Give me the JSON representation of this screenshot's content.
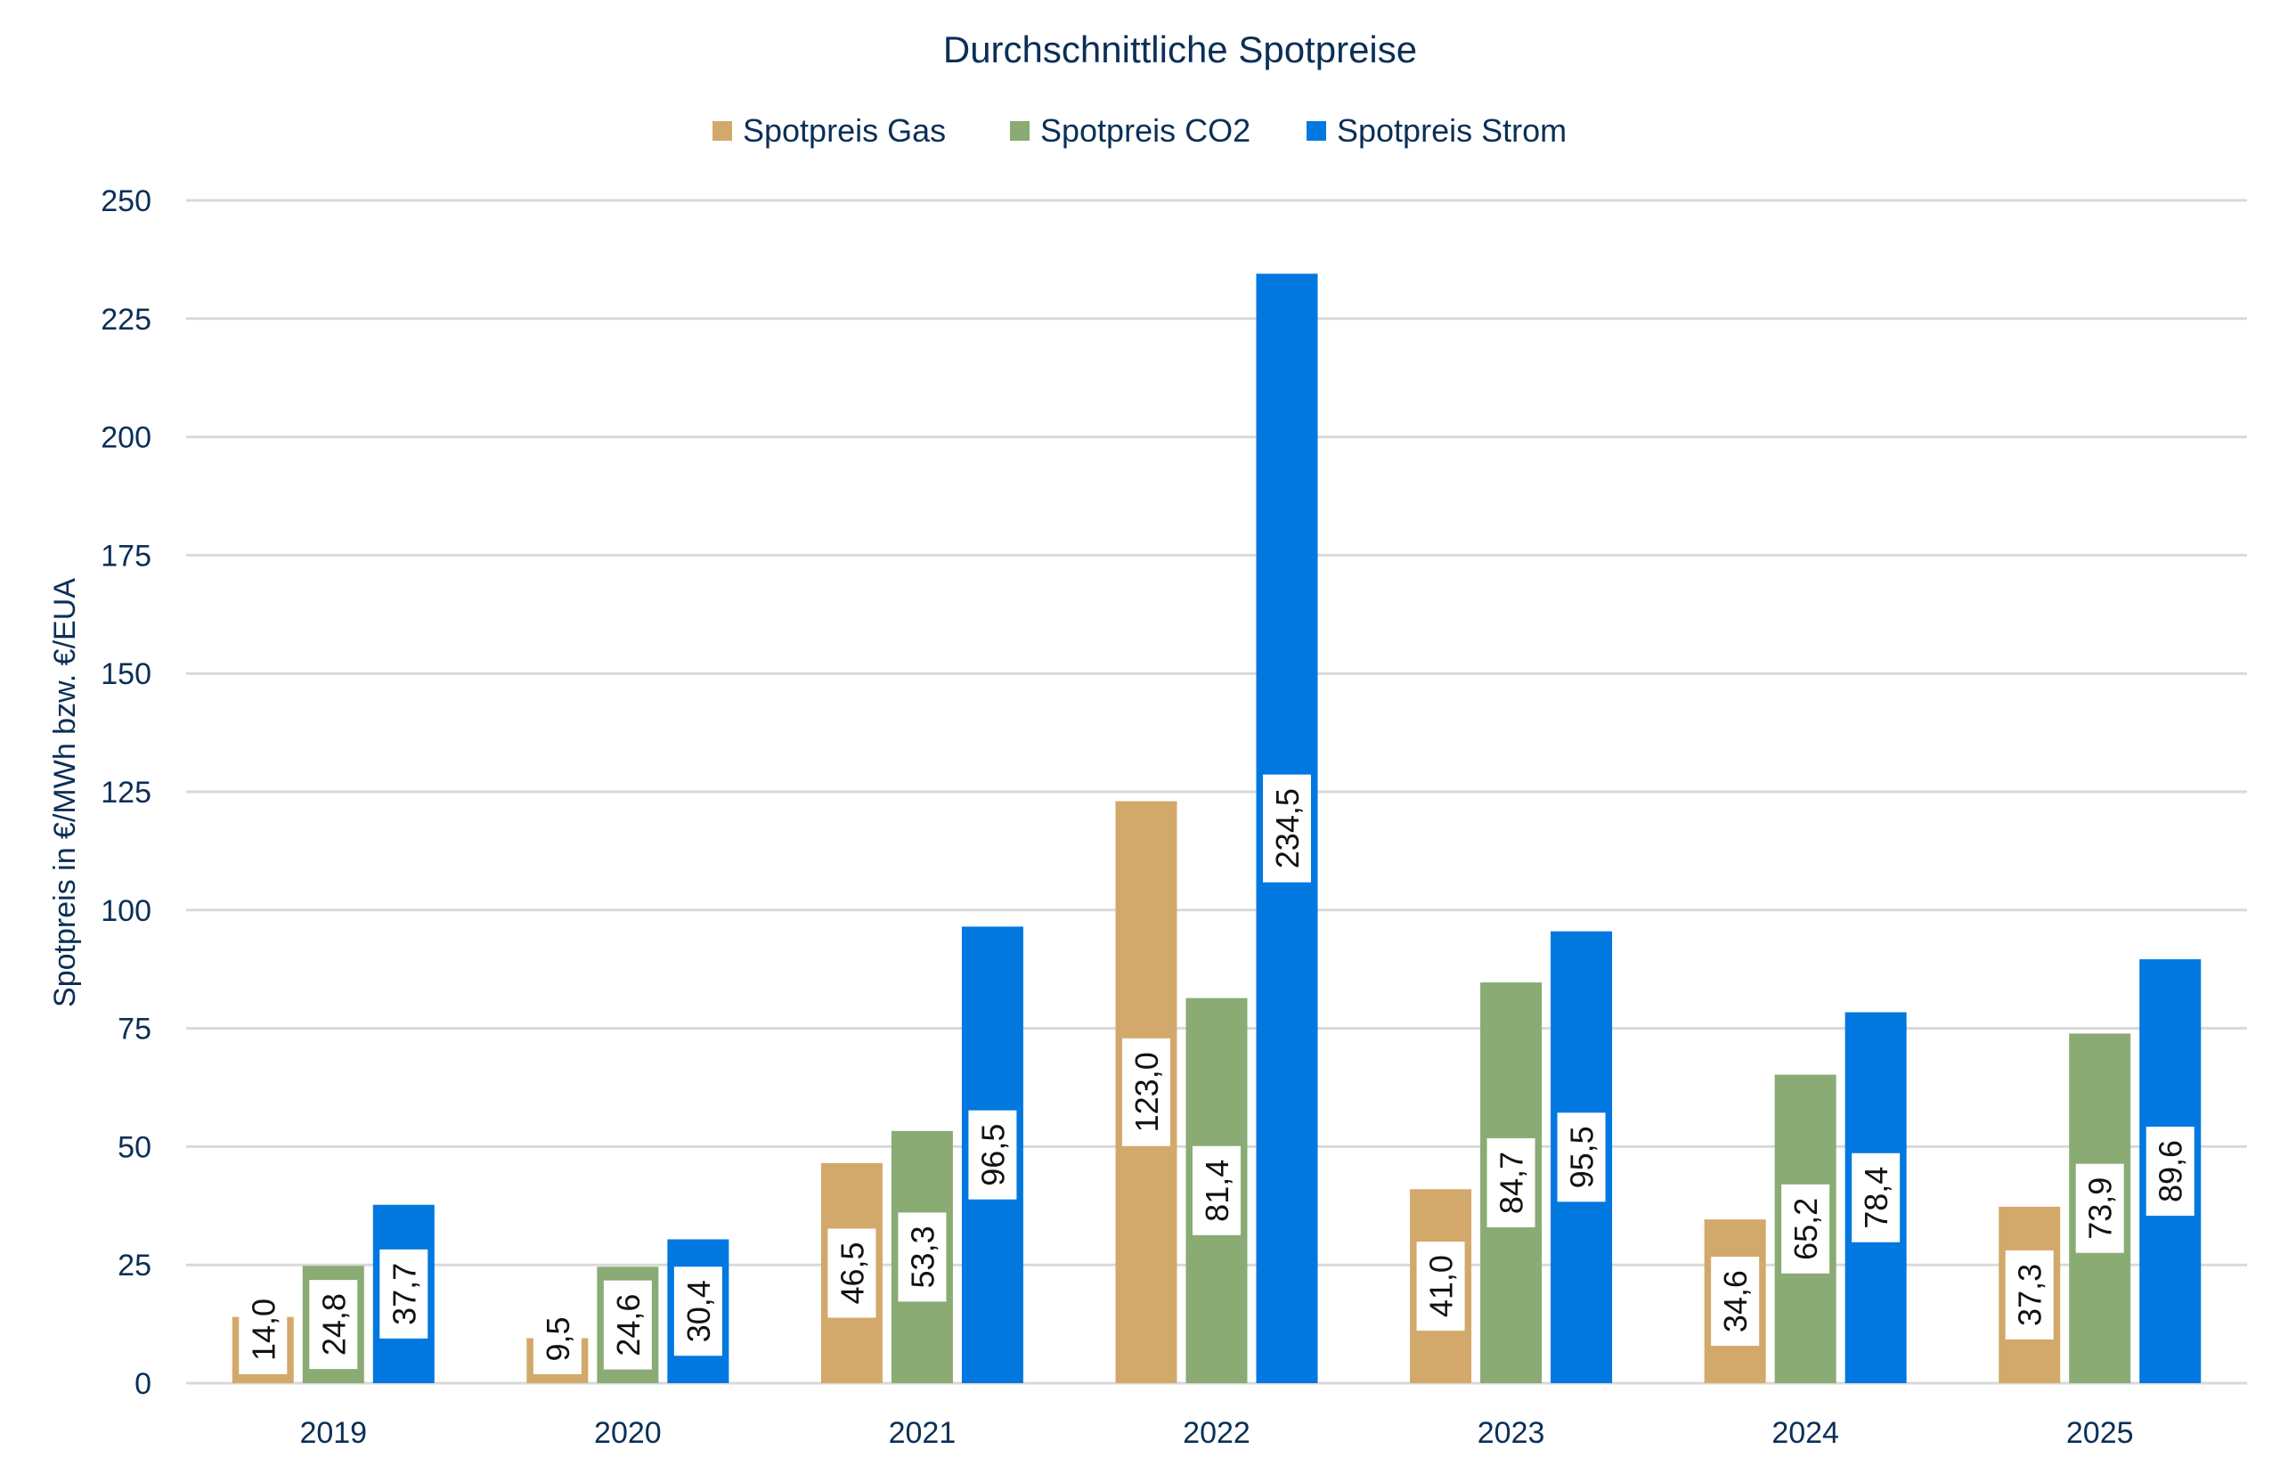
{
  "chart_data": {
    "type": "bar",
    "title": "Durchschnittliche Spotpreise",
    "xlabel": "",
    "ylabel": "Spotpreis in €/MWh bzw. €/EUA",
    "ylim": [
      0,
      250
    ],
    "yticks": [
      0,
      25,
      50,
      75,
      100,
      125,
      150,
      175,
      200,
      225,
      250
    ],
    "grid": true,
    "legend_position": "top",
    "categories": [
      "2019",
      "2020",
      "2021",
      "2022",
      "2023",
      "2024",
      "2025"
    ],
    "series": [
      {
        "name": "Spotpreis Gas",
        "color": "#d2a96a",
        "values": [
          14.0,
          9.5,
          46.5,
          123.0,
          41.0,
          34.6,
          37.3
        ],
        "labels": [
          "14,0",
          "9,5",
          "46,5",
          "123,0",
          "41,0",
          "34,6",
          "37,3"
        ]
      },
      {
        "name": "Spotpreis CO2",
        "color": "#8aab74",
        "values": [
          24.8,
          24.6,
          53.3,
          81.4,
          84.7,
          65.2,
          73.9
        ],
        "labels": [
          "24,8",
          "24,6",
          "53,3",
          "81,4",
          "84,7",
          "65,2",
          "73,9"
        ]
      },
      {
        "name": "Spotpreis Strom",
        "color": "#0078e0",
        "values": [
          37.7,
          30.4,
          96.5,
          234.5,
          95.5,
          78.4,
          89.6
        ],
        "labels": [
          "37,7",
          "30,4",
          "96,5",
          "234,5",
          "95,5",
          "78,4",
          "89,6"
        ]
      }
    ]
  }
}
